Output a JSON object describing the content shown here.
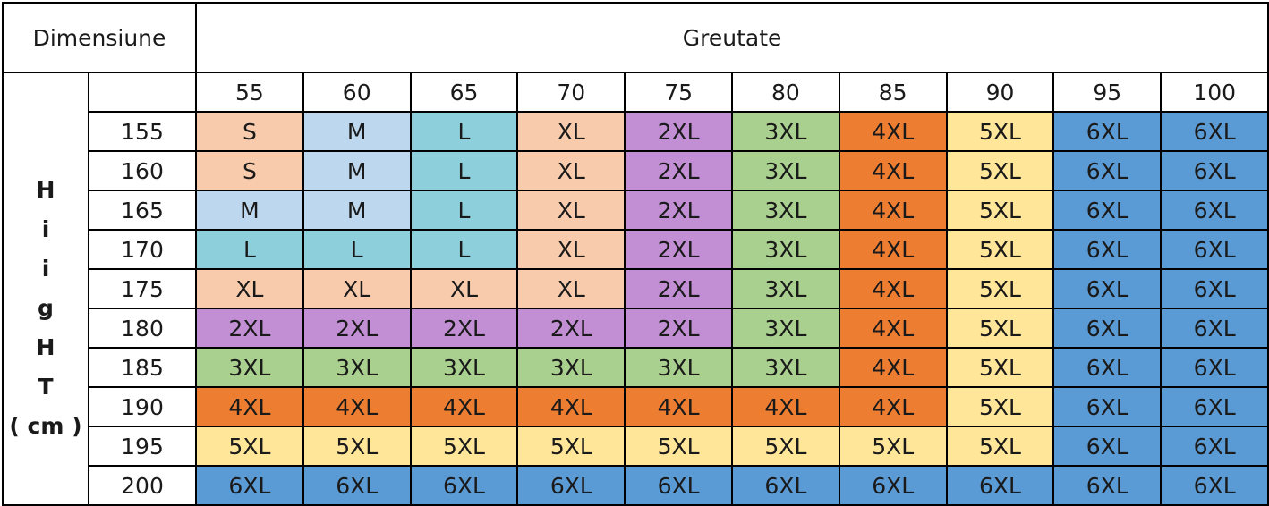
{
  "header": {
    "dimension_label": "Dimensiune",
    "weight_label": "Greutate"
  },
  "side_label": [
    "H",
    "i",
    "i",
    "g",
    "H",
    "T",
    "( cm )"
  ],
  "weights": [
    "55",
    "60",
    "65",
    "70",
    "75",
    "80",
    "85",
    "90",
    "95",
    "100"
  ],
  "colors": {
    "S": "#f7cbac",
    "M": "#bdd7ee",
    "L": "#8ecfdc",
    "XL": "#f7cbac",
    "2XL": "#c28fd4",
    "3XL": "#a9d08e",
    "4XL": "#ed7d31",
    "5XL": "#ffe699",
    "6XL": "#5b9bd5"
  },
  "rows": [
    {
      "height": "155",
      "sizes": [
        "S",
        "M",
        "L",
        "XL",
        "2XL",
        "3XL",
        "4XL",
        "5XL",
        "6XL",
        "6XL"
      ]
    },
    {
      "height": "160",
      "sizes": [
        "S",
        "M",
        "L",
        "XL",
        "2XL",
        "3XL",
        "4XL",
        "5XL",
        "6XL",
        "6XL"
      ]
    },
    {
      "height": "165",
      "sizes": [
        "M",
        "M",
        "L",
        "XL",
        "2XL",
        "3XL",
        "4XL",
        "5XL",
        "6XL",
        "6XL"
      ]
    },
    {
      "height": "170",
      "sizes": [
        "L",
        "L",
        "L",
        "XL",
        "2XL",
        "3XL",
        "4XL",
        "5XL",
        "6XL",
        "6XL"
      ]
    },
    {
      "height": "175",
      "sizes": [
        "XL",
        "XL",
        "XL",
        "XL",
        "2XL",
        "3XL",
        "4XL",
        "5XL",
        "6XL",
        "6XL"
      ]
    },
    {
      "height": "180",
      "sizes": [
        "2XL",
        "2XL",
        "2XL",
        "2XL",
        "2XL",
        "3XL",
        "4XL",
        "5XL",
        "6XL",
        "6XL"
      ]
    },
    {
      "height": "185",
      "sizes": [
        "3XL",
        "3XL",
        "3XL",
        "3XL",
        "3XL",
        "3XL",
        "4XL",
        "5XL",
        "6XL",
        "6XL"
      ]
    },
    {
      "height": "190",
      "sizes": [
        "4XL",
        "4XL",
        "4XL",
        "4XL",
        "4XL",
        "4XL",
        "4XL",
        "5XL",
        "6XL",
        "6XL"
      ]
    },
    {
      "height": "195",
      "sizes": [
        "5XL",
        "5XL",
        "5XL",
        "5XL",
        "5XL",
        "5XL",
        "5XL",
        "5XL",
        "6XL",
        "6XL"
      ]
    },
    {
      "height": "200",
      "sizes": [
        "6XL",
        "6XL",
        "6XL",
        "6XL",
        "6XL",
        "6XL",
        "6XL",
        "6XL",
        "6XL",
        "6XL"
      ]
    }
  ]
}
